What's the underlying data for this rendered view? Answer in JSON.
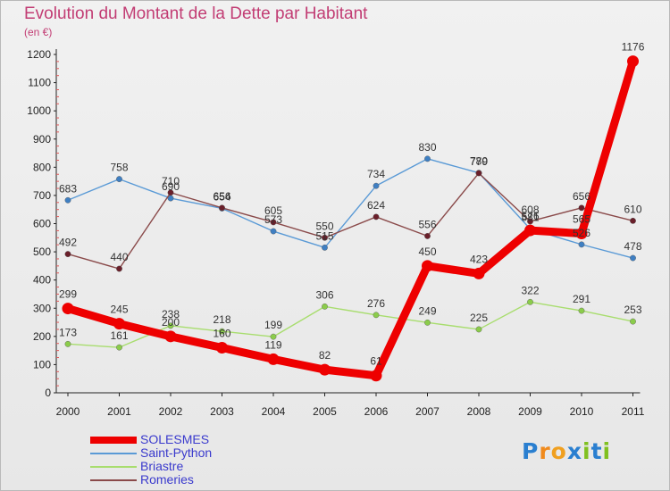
{
  "title": "Evolution du Montant de la Dette par Habitant",
  "unit": "(en €)",
  "logo": "Proxiti",
  "chart_data": {
    "type": "line",
    "title": "Evolution du Montant de la Dette par Habitant",
    "ylabel": "(en €)",
    "x": [
      2000,
      2001,
      2002,
      2003,
      2004,
      2005,
      2006,
      2007,
      2008,
      2009,
      2010,
      2011
    ],
    "ylim": [
      0,
      1200
    ],
    "yticks": [
      0,
      100,
      200,
      300,
      400,
      500,
      600,
      700,
      800,
      900,
      1000,
      1100,
      1200
    ],
    "grid": false,
    "legend": "bottom-left",
    "series": [
      {
        "name": "Saint-Python",
        "color": "#5a9ad6",
        "marker": "#3f7fc2",
        "values": [
          683,
          758,
          690,
          654,
          573,
          515,
          734,
          830,
          780,
          581,
          526,
          478
        ],
        "labels": [
          "683",
          "758",
          "690",
          "654",
          "573",
          "515",
          "734",
          "830",
          "780",
          "581",
          "526",
          "478"
        ]
      },
      {
        "name": "Briastre",
        "color": "#a8dd6e",
        "marker": "#8bcc4b",
        "values": [
          173,
          161,
          238,
          218,
          199,
          306,
          276,
          249,
          225,
          322,
          291,
          253
        ],
        "labels": [
          "173",
          "161",
          "238",
          "218",
          "199",
          "306",
          "276",
          "249",
          "225",
          "322",
          "291",
          "253"
        ]
      },
      {
        "name": "Romeries",
        "color": "#8a4a4a",
        "marker": "#6a1f2a",
        "values": [
          492,
          440,
          710,
          656,
          605,
          550,
          624,
          556,
          779,
          608,
          656,
          610
        ],
        "labels": [
          "492",
          "440",
          "710",
          "656",
          "605",
          "550",
          "624",
          "556",
          "779",
          "608",
          "656",
          "610"
        ]
      },
      {
        "name": "SOLESMES",
        "color": "#ee0000",
        "marker": "#ee0000",
        "thick": true,
        "values": [
          299,
          245,
          200,
          160,
          119,
          82,
          61,
          450,
          423,
          576,
          565,
          1176
        ],
        "labels": [
          "299",
          "245",
          "200",
          "160",
          "119",
          "82",
          "61",
          "450",
          "423",
          "576",
          "565",
          "1176"
        ]
      }
    ]
  },
  "legend_order": [
    {
      "name": "SOLESMES",
      "color": "#ee0000",
      "thick": true
    },
    {
      "name": "Saint-Python",
      "color": "#5a9ad6"
    },
    {
      "name": "Briastre",
      "color": "#a8dd6e"
    },
    {
      "name": "Romeries",
      "color": "#8a4a4a"
    }
  ],
  "logo_colors": [
    "#2a7fd0",
    "#f08a1c",
    "#f0a020",
    "#2a7fd0",
    "#80c020",
    "#2a7fd0",
    "#80c020"
  ]
}
